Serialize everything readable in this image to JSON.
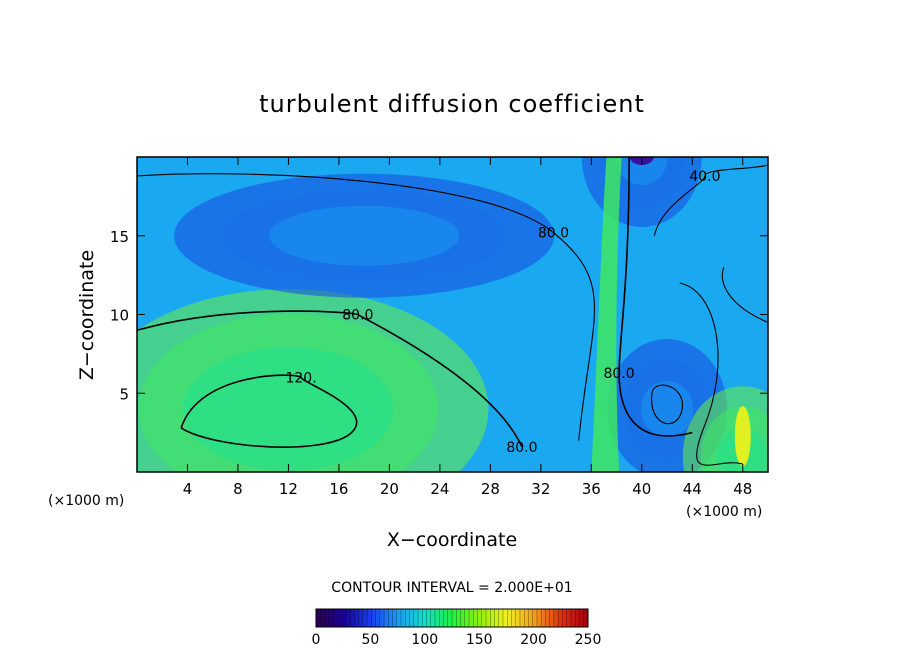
{
  "chart_data": {
    "type": "heatmap",
    "title": "turbulent diffusion coefficient",
    "xlabel": "X−coordinate",
    "ylabel": "Z−coordinate",
    "x_unit": "(×1000 m)",
    "x_unit_right": "(×1000 m)",
    "xlim": [
      0,
      50
    ],
    "ylim": [
      0,
      20
    ],
    "x_ticks": [
      4,
      8,
      12,
      16,
      20,
      24,
      28,
      32,
      36,
      40,
      44,
      48
    ],
    "y_ticks": [
      5,
      10,
      15
    ],
    "contour_interval_text": "CONTOUR INTERVAL = 2.000E+01",
    "contour_labels": [
      {
        "text": "120.",
        "x": 13.0,
        "z": 6.0
      },
      {
        "text": "80.0",
        "x": 17.5,
        "z": 10.0
      },
      {
        "text": "80.0",
        "x": 33.0,
        "z": 15.2
      },
      {
        "text": "80.0",
        "x": 38.2,
        "z": 6.3
      },
      {
        "text": "80.0",
        "x": 30.5,
        "z": 1.6
      },
      {
        "text": "40.0",
        "x": 45.0,
        "z": 18.8
      }
    ],
    "colorbar": {
      "min": 0,
      "max": 250,
      "ticks": [
        "0",
        "50",
        "100",
        "150",
        "200",
        "250"
      ]
    },
    "features": [
      {
        "kind": "maximum",
        "x": 12,
        "z": 4,
        "value": 125
      },
      {
        "kind": "minimum",
        "x": 18,
        "z": 15,
        "value": 70
      },
      {
        "kind": "minimum",
        "x": 42,
        "z": 4,
        "value": 45
      },
      {
        "kind": "minimum",
        "x": 40,
        "z": 20,
        "value": 15
      },
      {
        "kind": "maximum",
        "x": 48,
        "z": 1,
        "value": 175
      }
    ]
  }
}
